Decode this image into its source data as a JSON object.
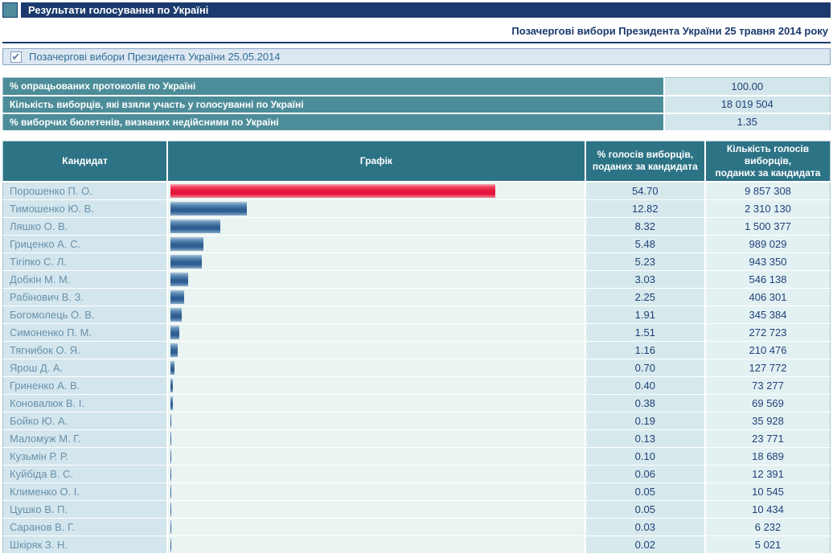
{
  "header": {
    "title": "Результати голосування по Україні",
    "subtitle": "Позачергові вибори Президента України 25 травня 2014 року"
  },
  "filter": {
    "label": "Позачергові вибори Президента України 25.05.2014",
    "checked": true,
    "checkmark_glyph": "✔"
  },
  "summary": [
    {
      "label": "% опрацьованих протоколів по Україні",
      "value": "100.00"
    },
    {
      "label": "Кількість виборців, які взяли участь у голосуванні по Україні",
      "value": "18 019 504"
    },
    {
      "label": "% виборчих бюлетенів, визнаних недійсними по Україні",
      "value": "1.35"
    }
  ],
  "results": {
    "columns": {
      "candidate": "Кандидат",
      "graph": "Графік",
      "percent": "% голосів виборців,\nподаних за кандидата",
      "votes": "Кількість голосів виборців,\nподаних за кандидата"
    }
  },
  "chart_data": {
    "type": "bar",
    "orientation": "horizontal",
    "title": "Графік",
    "value_unit": "percent of votes",
    "xlim": [
      0,
      70
    ],
    "bar_colors": {
      "leader": "#e5123a",
      "default": "#2f5f92"
    },
    "candidates": [
      {
        "name": "Порошенко П. О.",
        "percent": "54.70",
        "votes": "9 857 308",
        "bar": "red"
      },
      {
        "name": "Тимошенко Ю. В.",
        "percent": "12.82",
        "votes": "2 310 130",
        "bar": "blue"
      },
      {
        "name": "Ляшко О. В.",
        "percent": "8.32",
        "votes": "1 500 377",
        "bar": "blue"
      },
      {
        "name": "Гриценко А. С.",
        "percent": "5.48",
        "votes": "989 029",
        "bar": "blue"
      },
      {
        "name": "Тігіпко С. Л.",
        "percent": "5.23",
        "votes": "943 350",
        "bar": "blue"
      },
      {
        "name": "Добкін М. М.",
        "percent": "3.03",
        "votes": "546 138",
        "bar": "blue"
      },
      {
        "name": "Рабінович В. З.",
        "percent": "2.25",
        "votes": "406 301",
        "bar": "blue"
      },
      {
        "name": "Богомолець О. В.",
        "percent": "1.91",
        "votes": "345 384",
        "bar": "blue"
      },
      {
        "name": "Симоненко П. М.",
        "percent": "1.51",
        "votes": "272 723",
        "bar": "blue"
      },
      {
        "name": "Тягнибок О. Я.",
        "percent": "1.16",
        "votes": "210 476",
        "bar": "blue"
      },
      {
        "name": "Ярош Д. А.",
        "percent": "0.70",
        "votes": "127 772",
        "bar": "blue"
      },
      {
        "name": "Гриненко А. В.",
        "percent": "0.40",
        "votes": "73 277",
        "bar": "blue"
      },
      {
        "name": "Коновалюк В. І.",
        "percent": "0.38",
        "votes": "69 569",
        "bar": "blue"
      },
      {
        "name": "Бойко Ю. А.",
        "percent": "0.19",
        "votes": "35 928",
        "bar": "blue"
      },
      {
        "name": "Маломуж М. Г.",
        "percent": "0.13",
        "votes": "23 771",
        "bar": "blue"
      },
      {
        "name": "Кузьмін Р. Р.",
        "percent": "0.10",
        "votes": "18 689",
        "bar": "blue"
      },
      {
        "name": "Куйбіда В. С.",
        "percent": "0.06",
        "votes": "12 391",
        "bar": "blue"
      },
      {
        "name": "Клименко О. І.",
        "percent": "0.05",
        "votes": "10 545",
        "bar": "blue"
      },
      {
        "name": "Цушко В. П.",
        "percent": "0.05",
        "votes": "10 434",
        "bar": "blue"
      },
      {
        "name": "Саранов В. Г.",
        "percent": "0.03",
        "votes": "6 232",
        "bar": "blue"
      },
      {
        "name": "Шкіряк З. Н.",
        "percent": "0.02",
        "votes": "5 021",
        "bar": "blue"
      }
    ]
  },
  "colors": {
    "navy": "#1b3a6d",
    "table_header_teal": "#2d7386",
    "summary_label_teal": "#4d8d99",
    "accent_square_teal": "#4f8c9d",
    "leader_bar_red": "#e5123a",
    "bar_blue": "#2f5f92",
    "candidate_name_text": "#6892ab",
    "value_text": "#1f4178"
  }
}
